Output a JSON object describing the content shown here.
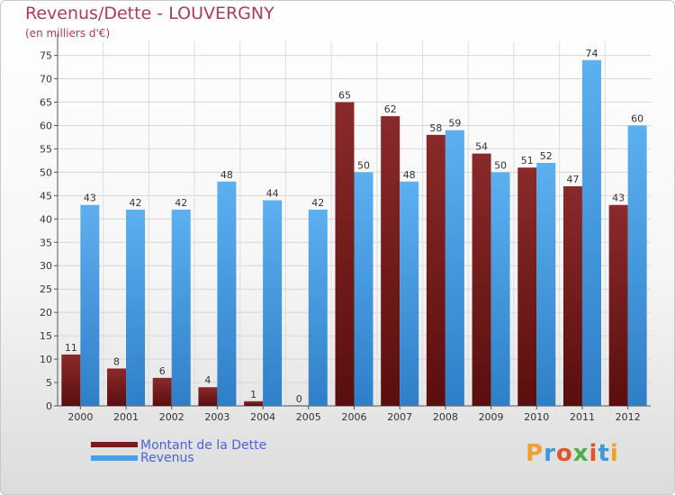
{
  "title": "Revenus/Dette - LOUVERGNY",
  "subtitle": "(en milliers d'€)",
  "legend": [
    {
      "label": "Montant de la Dette",
      "color": "#7a1a1a"
    },
    {
      "label": "Revenus",
      "color": "#4d9fe6"
    }
  ],
  "logo": {
    "letters": [
      "P",
      "r",
      "o",
      "x",
      "i",
      "t",
      "i"
    ],
    "colors": [
      "#f0a030",
      "#3a9ad9",
      "#e0542c",
      "#49b049",
      "#e0542c",
      "#3a9ad9",
      "#f0a030"
    ]
  },
  "chart_data": {
    "type": "bar",
    "categories": [
      "2000",
      "2001",
      "2002",
      "2003",
      "2004",
      "2005",
      "2006",
      "2007",
      "2008",
      "2009",
      "2010",
      "2011",
      "2012"
    ],
    "series": [
      {
        "name": "Montant de la Dette",
        "color": "#7a1a1a",
        "values": [
          11,
          8,
          6,
          4,
          1,
          0,
          65,
          62,
          58,
          54,
          51,
          47,
          43
        ]
      },
      {
        "name": "Revenus",
        "color": "#4d9fe6",
        "values": [
          43,
          42,
          42,
          48,
          44,
          42,
          50,
          48,
          59,
          50,
          52,
          74,
          60
        ]
      }
    ],
    "yticks": [
      0,
      5,
      10,
      15,
      20,
      25,
      30,
      35,
      40,
      45,
      50,
      55,
      60,
      65,
      70,
      75
    ],
    "ylim": [
      0,
      78
    ],
    "grid": true,
    "legend_position": "bottom-left"
  }
}
